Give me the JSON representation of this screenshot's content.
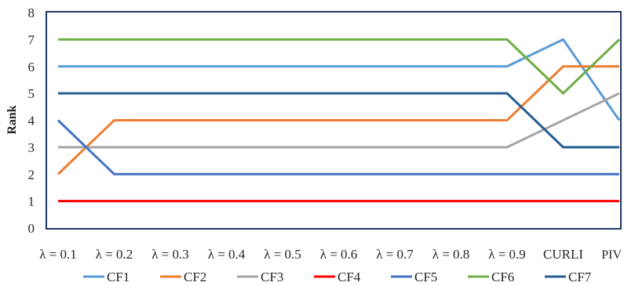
{
  "chart_data": {
    "type": "line",
    "title": "",
    "xlabel": "",
    "ylabel": "Rank",
    "ylim": [
      0,
      8
    ],
    "yticks": [
      "0",
      "1",
      "2",
      "3",
      "4",
      "5",
      "6",
      "7",
      "8"
    ],
    "categories": [
      "λ = 0.1",
      "λ = 0.2",
      "λ = 0.3",
      "λ = 0.4",
      "λ = 0.5",
      "λ = 0.6",
      "λ = 0.7",
      "λ = 0.8",
      "λ = 0.9",
      "CURLI",
      "PIV"
    ],
    "grid": false,
    "legend_position": "bottom",
    "series": [
      {
        "name": "CF1",
        "color": "#5b9bd5",
        "values": [
          6,
          6,
          6,
          6,
          6,
          6,
          6,
          6,
          6,
          7,
          4
        ]
      },
      {
        "name": "CF2",
        "color": "#ed7d31",
        "values": [
          2,
          4,
          4,
          4,
          4,
          4,
          4,
          4,
          4,
          6,
          6
        ]
      },
      {
        "name": "CF3",
        "color": "#a5a5a5",
        "values": [
          3,
          3,
          3,
          3,
          3,
          3,
          3,
          3,
          3,
          4,
          5
        ]
      },
      {
        "name": "CF4",
        "color": "#ff0000",
        "values": [
          1,
          1,
          1,
          1,
          1,
          1,
          1,
          1,
          1,
          1,
          1
        ]
      },
      {
        "name": "CF5",
        "color": "#4472c4",
        "values": [
          4,
          2,
          2,
          2,
          2,
          2,
          2,
          2,
          2,
          2,
          2
        ]
      },
      {
        "name": "CF6",
        "color": "#70ad47",
        "values": [
          7,
          7,
          7,
          7,
          7,
          7,
          7,
          7,
          7,
          5,
          7
        ]
      },
      {
        "name": "CF7",
        "color": "#255e91",
        "values": [
          5,
          5,
          5,
          5,
          5,
          5,
          5,
          5,
          5,
          3,
          3
        ]
      }
    ]
  }
}
